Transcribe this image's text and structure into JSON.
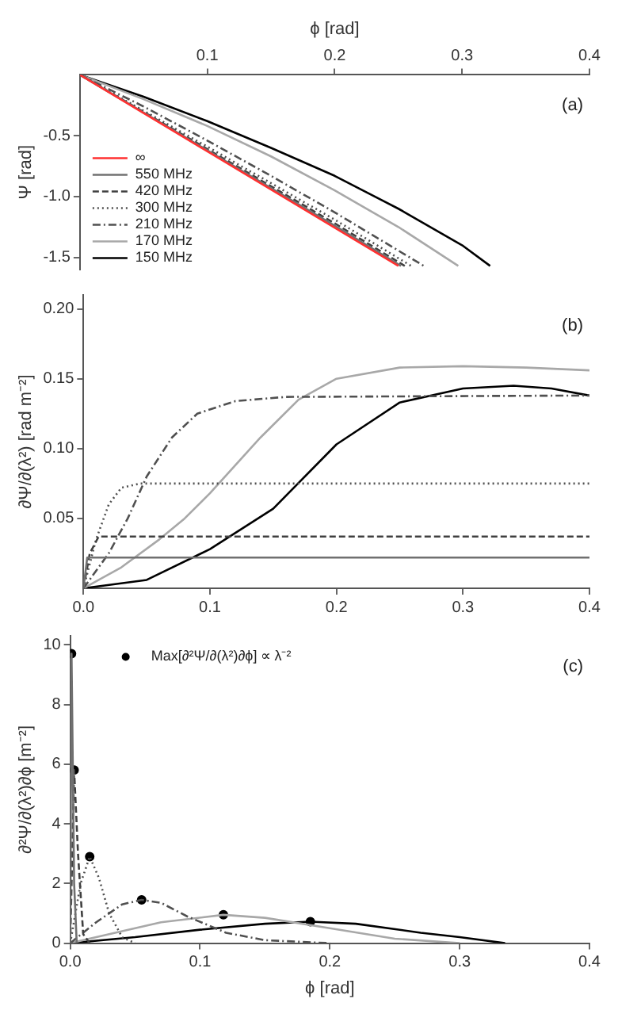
{
  "chart_data": [
    {
      "type": "line",
      "xlabel": "ϕ [rad]",
      "ylabel": "Ψ [rad]",
      "xlim": [
        0,
        0.4
      ],
      "xticks": [
        0.1,
        0.2,
        0.3,
        0.4
      ],
      "ylim": [
        -1.6,
        0
      ],
      "yticks": [
        -0.5,
        {
          "value": -1,
          "label": "-1.0"
        },
        -1.5
      ],
      "legend": "bottom left",
      "marker": "none",
      "annotations": [
        "(a)"
      ],
      "series": [
        {
          "name": "∞",
          "color": "#ff3030",
          "line_style": "solid",
          "x": [
            0,
            0.25
          ],
          "values": [
            0,
            -1.57
          ]
        },
        {
          "name": "550 MHz",
          "color": "#707070",
          "line_style": "solid",
          "x": [
            0,
            0.1,
            0.2,
            0.252
          ],
          "values": [
            0,
            -0.62,
            -1.24,
            -1.57
          ]
        },
        {
          "name": "420 MHz",
          "color": "#404040",
          "line_style": "dashed",
          "x": [
            0,
            0.1,
            0.2,
            0.255
          ],
          "values": [
            0,
            -0.61,
            -1.22,
            -1.57
          ]
        },
        {
          "name": "300 MHz",
          "color": "#505050",
          "line_style": "dotted",
          "x": [
            0,
            0.1,
            0.2,
            0.26
          ],
          "values": [
            0,
            -0.59,
            -1.19,
            -1.57
          ]
        },
        {
          "name": "210 MHz",
          "color": "#505050",
          "line_style": "dashdot",
          "x": [
            0,
            0.05,
            0.1,
            0.15,
            0.2,
            0.27
          ],
          "values": [
            0,
            -0.26,
            -0.54,
            -0.83,
            -1.13,
            -1.57
          ]
        },
        {
          "name": "170 MHz",
          "color": "#a8a8a8",
          "line_style": "solid",
          "x": [
            0,
            0.05,
            0.1,
            0.15,
            0.2,
            0.25,
            0.297
          ],
          "values": [
            0,
            -0.2,
            -0.42,
            -0.67,
            -0.95,
            -1.25,
            -1.57
          ]
        },
        {
          "name": "150 MHz",
          "color": "#000000",
          "line_style": "solid",
          "x": [
            0,
            0.05,
            0.1,
            0.15,
            0.2,
            0.25,
            0.3,
            0.322
          ],
          "values": [
            0,
            -0.18,
            -0.38,
            -0.6,
            -0.83,
            -1.1,
            -1.4,
            -1.57
          ]
        }
      ]
    },
    {
      "type": "line",
      "ylabel": "∂Ψ/∂(λ²) [rad m⁻²]",
      "xlim": [
        0,
        0.4
      ],
      "xticks": [
        {
          "value": 0,
          "label": "0.0"
        },
        0.1,
        0.2,
        0.3,
        0.4
      ],
      "ylim": [
        0,
        0.21
      ],
      "yticks": [
        0.05,
        {
          "value": 0.1,
          "label": "0.10"
        },
        0.15,
        {
          "value": 0.2,
          "label": "0.20"
        }
      ],
      "marker": "none",
      "annotations": [
        "(b)"
      ],
      "series": [
        {
          "color": "#707070",
          "line_style": "solid",
          "x": [
            0,
            0.003,
            0.4
          ],
          "values": [
            0,
            0.022,
            0.022
          ]
        },
        {
          "color": "#404040",
          "line_style": "dashed",
          "x": [
            0,
            0.005,
            0.012,
            0.4
          ],
          "values": [
            0,
            0.025,
            0.037,
            0.037
          ]
        },
        {
          "color": "#505050",
          "line_style": "dotted",
          "x": [
            0,
            0.01,
            0.02,
            0.03,
            0.045,
            0.4
          ],
          "values": [
            0,
            0.035,
            0.06,
            0.072,
            0.075,
            0.075
          ]
        },
        {
          "color": "#505050",
          "line_style": "dashdot",
          "x": [
            0,
            0.02,
            0.035,
            0.05,
            0.07,
            0.09,
            0.12,
            0.16,
            0.4
          ],
          "values": [
            0,
            0.025,
            0.05,
            0.08,
            0.108,
            0.125,
            0.134,
            0.137,
            0.138
          ]
        },
        {
          "color": "#a8a8a8",
          "line_style": "solid",
          "x": [
            0,
            0.03,
            0.06,
            0.08,
            0.1,
            0.12,
            0.14,
            0.17,
            0.2,
            0.25,
            0.3,
            0.35,
            0.4
          ],
          "values": [
            0,
            0.015,
            0.035,
            0.05,
            0.068,
            0.088,
            0.108,
            0.135,
            0.15,
            0.158,
            0.159,
            0.158,
            0.156
          ]
        },
        {
          "color": "#000000",
          "line_style": "solid",
          "x": [
            0,
            0.05,
            0.1,
            0.15,
            0.2,
            0.25,
            0.3,
            0.34,
            0.37,
            0.4
          ],
          "values": [
            0,
            0.006,
            0.028,
            0.057,
            0.103,
            0.133,
            0.143,
            0.145,
            0.143,
            0.138
          ]
        }
      ]
    },
    {
      "type": "line",
      "xlabel": "ϕ [rad]",
      "ylabel": "∂²Ψ/∂(λ²)∂ϕ [m⁻²]",
      "xlim": [
        0,
        0.4
      ],
      "xticks": [
        {
          "value": 0,
          "label": "0.0"
        },
        0.1,
        0.2,
        0.3,
        0.4
      ],
      "ylim": [
        0,
        10.3
      ],
      "yticks": [
        0,
        2,
        4,
        6,
        8,
        10
      ],
      "legend": "top left",
      "marker": "none",
      "annotations": [
        "(c)"
      ],
      "series": [
        {
          "color": "#707070",
          "line_style": "solid",
          "x": [
            0,
            0.001,
            0.003,
            0.005
          ],
          "values": [
            0,
            9.7,
            2,
            0
          ]
        },
        {
          "color": "#404040",
          "line_style": "dashed",
          "x": [
            0,
            0.003,
            0.006,
            0.01,
            0.015
          ],
          "values": [
            0,
            5.8,
            3,
            0.3,
            0
          ]
        },
        {
          "color": "#505050",
          "line_style": "dotted",
          "x": [
            0,
            0.008,
            0.015,
            0.022,
            0.03,
            0.04,
            0.05
          ],
          "values": [
            0,
            2,
            2.9,
            2.2,
            1,
            0.2,
            0
          ]
        },
        {
          "color": "#505050",
          "line_style": "dashdot",
          "x": [
            0,
            0.02,
            0.04,
            0.055,
            0.07,
            0.09,
            0.12,
            0.15,
            0.2
          ],
          "values": [
            0,
            0.7,
            1.3,
            1.45,
            1.35,
            0.9,
            0.35,
            0.1,
            0
          ]
        },
        {
          "color": "#a8a8a8",
          "line_style": "solid",
          "x": [
            0,
            0.03,
            0.07,
            0.118,
            0.15,
            0.2,
            0.25,
            0.3
          ],
          "values": [
            0,
            0.3,
            0.7,
            0.95,
            0.85,
            0.5,
            0.15,
            0
          ]
        },
        {
          "color": "#000000",
          "line_style": "solid",
          "x": [
            0,
            0.05,
            0.1,
            0.15,
            0.185,
            0.22,
            0.27,
            0.3,
            0.335
          ],
          "values": [
            0,
            0.2,
            0.45,
            0.65,
            0.72,
            0.65,
            0.35,
            0.2,
            0
          ]
        },
        {
          "type": "scatter",
          "marker": "circle",
          "name": "Max[∂²Ψ/∂(λ²)∂ϕ] ∝ λ⁻²",
          "color": "#000000",
          "x": [
            0.001,
            0.003,
            0.015,
            0.055,
            0.118,
            0.185
          ],
          "values": [
            9.7,
            5.8,
            2.9,
            1.45,
            0.95,
            0.72
          ]
        }
      ]
    }
  ]
}
